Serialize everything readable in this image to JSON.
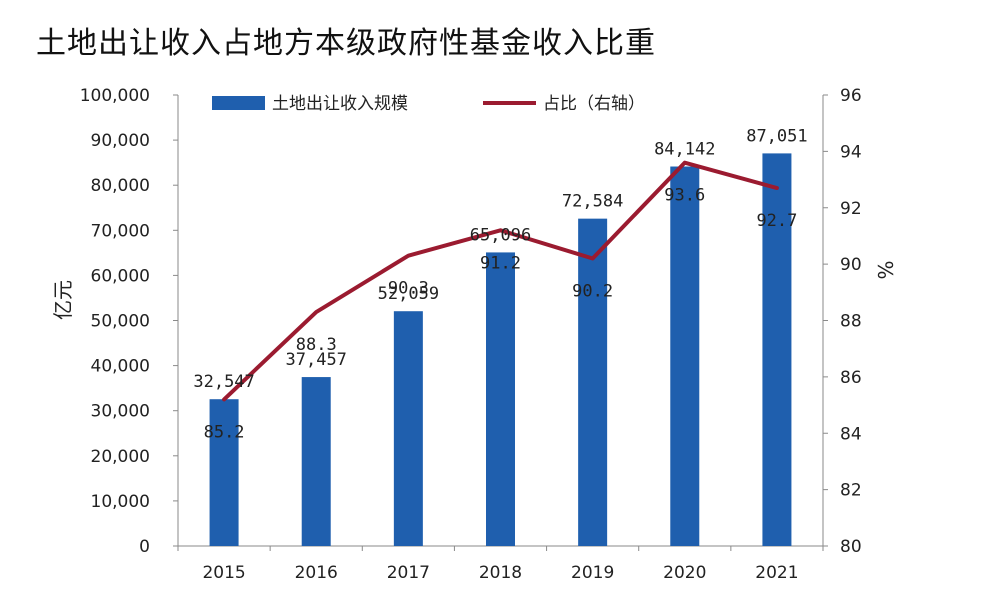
{
  "title": "土地出让收入占地方本级政府性基金收入比重",
  "chart_data": {
    "type": "bar+line",
    "title": "土地出让收入占地方本级政府性基金收入比重",
    "categories": [
      "2015",
      "2016",
      "2017",
      "2018",
      "2019",
      "2020",
      "2021"
    ],
    "series": [
      {
        "name": "土地出让收入规模",
        "type": "bar",
        "axis": "left",
        "color": "#1f5fae",
        "values": [
          32547,
          37457,
          52059,
          65096,
          72584,
          84142,
          87051
        ],
        "labels": [
          "32,547",
          "37,457",
          "52,059",
          "65,096",
          "72,584",
          "84,142",
          "87,051"
        ]
      },
      {
        "name": "占比（右轴）",
        "type": "line",
        "axis": "right",
        "color": "#9b1b30",
        "values": [
          85.2,
          88.3,
          90.3,
          91.2,
          90.2,
          93.6,
          92.7
        ],
        "labels": [
          "85.2",
          "88.3",
          "90.3",
          "91.2",
          "90.2",
          "93.6",
          "92.7"
        ]
      }
    ],
    "ylabel_left": "亿元",
    "ylabel_right": "%",
    "ylim_left": [
      0,
      100000
    ],
    "ylim_right": [
      80,
      96
    ],
    "yticks_left": [
      "0",
      "10,000",
      "20,000",
      "30,000",
      "40,000",
      "50,000",
      "60,000",
      "70,000",
      "80,000",
      "90,000",
      "100,000"
    ],
    "yticks_right": [
      "80",
      "82",
      "84",
      "86",
      "88",
      "90",
      "92",
      "94",
      "96"
    ],
    "grid": false,
    "legend_position": "top"
  }
}
